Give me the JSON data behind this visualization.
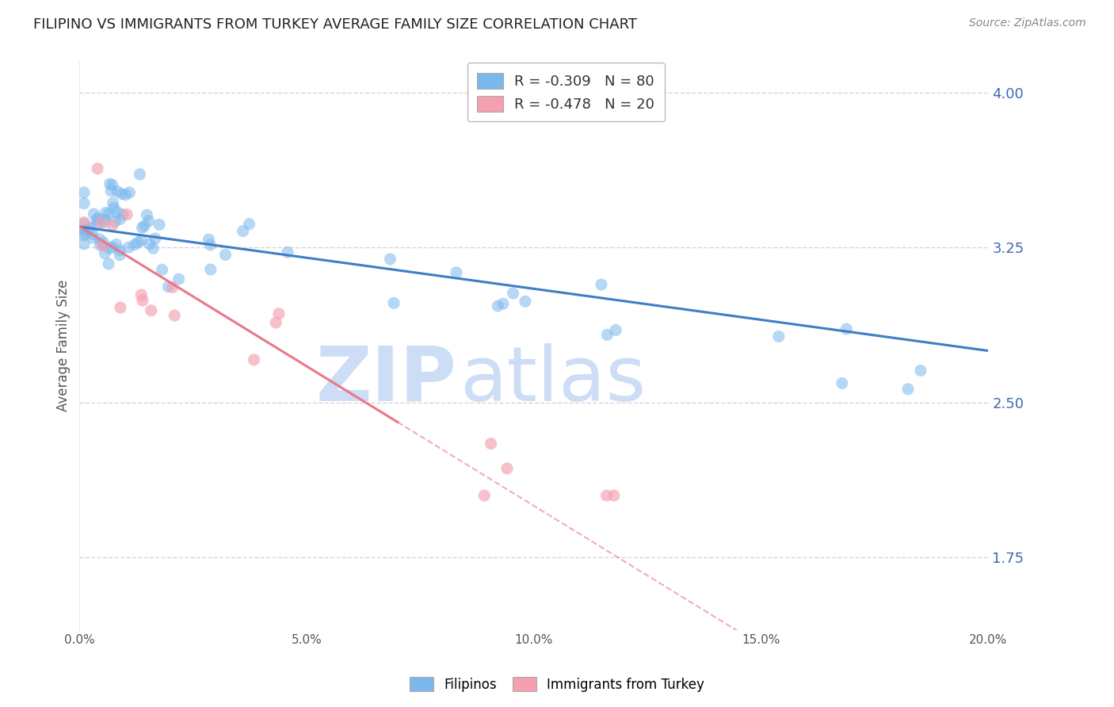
{
  "title": "FILIPINO VS IMMIGRANTS FROM TURKEY AVERAGE FAMILY SIZE CORRELATION CHART",
  "source": "Source: ZipAtlas.com",
  "ylabel": "Average Family Size",
  "yticks": [
    1.75,
    2.5,
    3.25,
    4.0
  ],
  "xmin": 0.0,
  "xmax": 0.2,
  "ymin": 1.4,
  "ymax": 4.15,
  "R_filipino": -0.309,
  "N_filipino": 80,
  "R_turkey": -0.478,
  "N_turkey": 20,
  "filipino_color": "#7bb8ed",
  "turkey_color": "#f4a0b0",
  "reg_blue_color": "#3d7fc4",
  "reg_pink_color": "#e8788a",
  "watermark_zip": "ZIP",
  "watermark_atlas": "atlas",
  "watermark_color": "#ccddf5",
  "background_color": "#ffffff",
  "grid_color": "#cccccc",
  "legend_box_color": "#f0f0f0",
  "title_color": "#222222",
  "source_color": "#888888",
  "tick_color": "#555555",
  "yaxis_color": "#4169b0"
}
